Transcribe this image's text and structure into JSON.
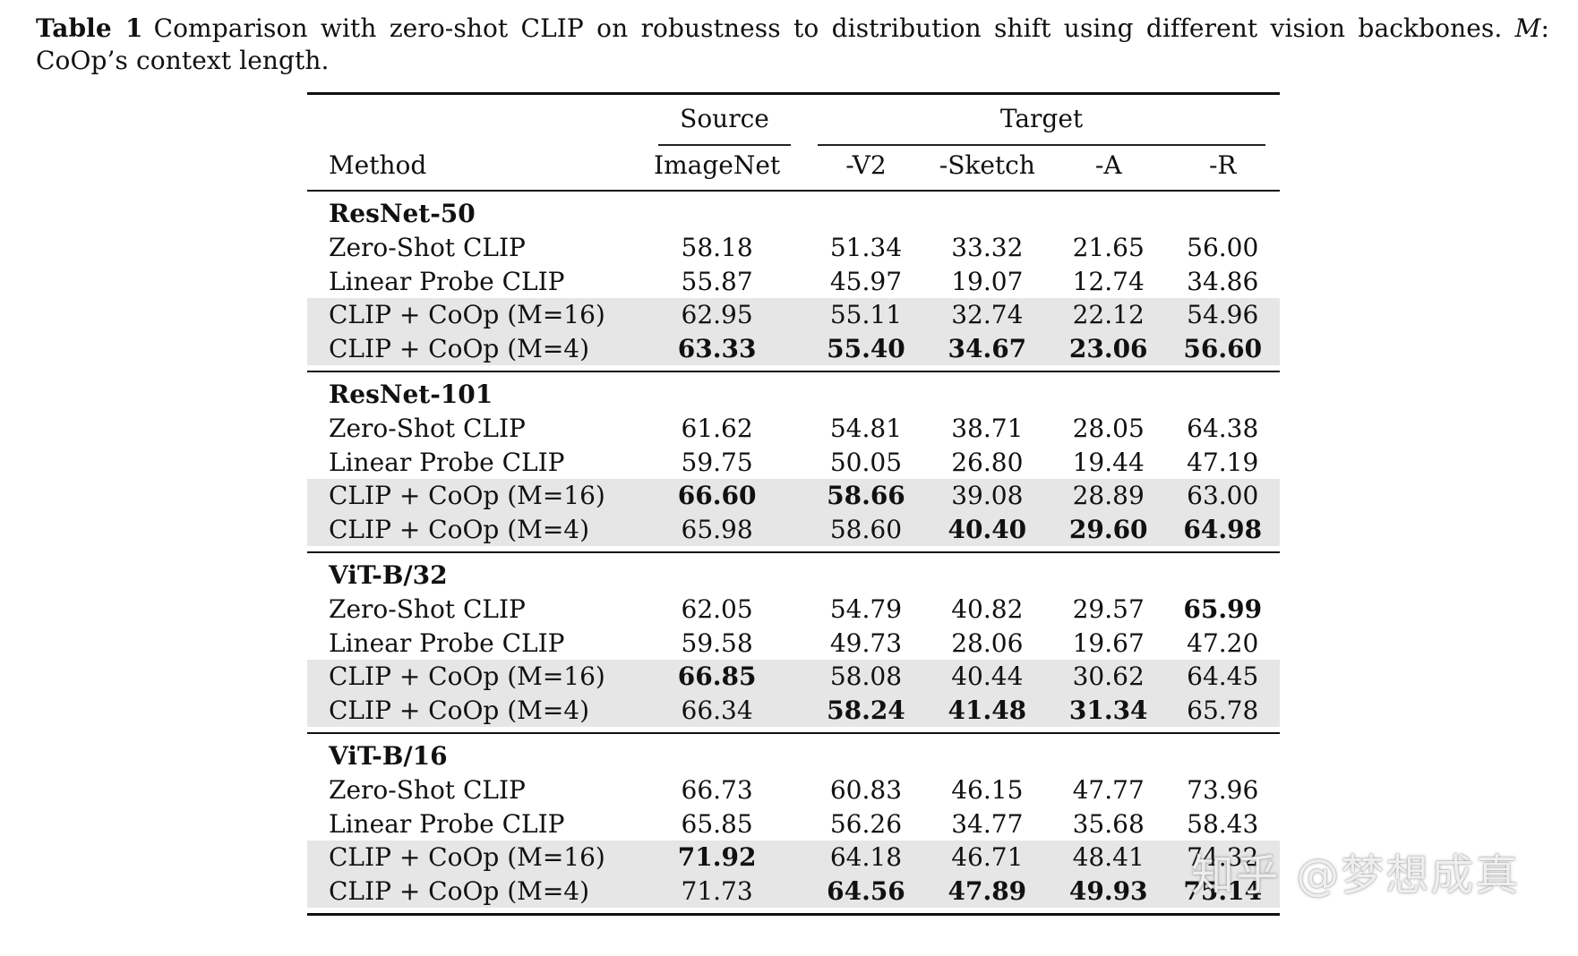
{
  "caption": {
    "label": "Table 1",
    "text_before": "Comparison with zero-shot CLIP on robustness to distribution shift using different vision backbones.",
    "var": "M",
    "text_after": ": CoOp’s context length."
  },
  "header": {
    "source_group": "Source",
    "target_group": "Target",
    "columns": [
      "Method",
      "ImageNet",
      "-V2",
      "-Sketch",
      "-A",
      "-R"
    ]
  },
  "groups": [
    {
      "name": "ResNet-50",
      "rows": [
        {
          "method": "Zero-Shot CLIP",
          "vals": [
            "58.18",
            "51.34",
            "33.32",
            "21.65",
            "56.00"
          ],
          "bold": [
            false,
            false,
            false,
            false,
            false
          ],
          "shade": false
        },
        {
          "method": "Linear Probe CLIP",
          "vals": [
            "55.87",
            "45.97",
            "19.07",
            "12.74",
            "34.86"
          ],
          "bold": [
            false,
            false,
            false,
            false,
            false
          ],
          "shade": false
        },
        {
          "method": "CLIP + CoOp (M=16)",
          "vals": [
            "62.95",
            "55.11",
            "32.74",
            "22.12",
            "54.96"
          ],
          "bold": [
            false,
            false,
            false,
            false,
            false
          ],
          "shade": true
        },
        {
          "method": "CLIP + CoOp (M=4)",
          "vals": [
            "63.33",
            "55.40",
            "34.67",
            "23.06",
            "56.60"
          ],
          "bold": [
            true,
            true,
            true,
            true,
            true
          ],
          "shade": true
        }
      ]
    },
    {
      "name": "ResNet-101",
      "rows": [
        {
          "method": "Zero-Shot CLIP",
          "vals": [
            "61.62",
            "54.81",
            "38.71",
            "28.05",
            "64.38"
          ],
          "bold": [
            false,
            false,
            false,
            false,
            false
          ],
          "shade": false
        },
        {
          "method": "Linear Probe CLIP",
          "vals": [
            "59.75",
            "50.05",
            "26.80",
            "19.44",
            "47.19"
          ],
          "bold": [
            false,
            false,
            false,
            false,
            false
          ],
          "shade": false
        },
        {
          "method": "CLIP + CoOp (M=16)",
          "vals": [
            "66.60",
            "58.66",
            "39.08",
            "28.89",
            "63.00"
          ],
          "bold": [
            true,
            true,
            false,
            false,
            false
          ],
          "shade": true
        },
        {
          "method": "CLIP + CoOp (M=4)",
          "vals": [
            "65.98",
            "58.60",
            "40.40",
            "29.60",
            "64.98"
          ],
          "bold": [
            false,
            false,
            true,
            true,
            true
          ],
          "shade": true
        }
      ]
    },
    {
      "name": "ViT-B/32",
      "rows": [
        {
          "method": "Zero-Shot CLIP",
          "vals": [
            "62.05",
            "54.79",
            "40.82",
            "29.57",
            "65.99"
          ],
          "bold": [
            false,
            false,
            false,
            false,
            true
          ],
          "shade": false
        },
        {
          "method": "Linear Probe CLIP",
          "vals": [
            "59.58",
            "49.73",
            "28.06",
            "19.67",
            "47.20"
          ],
          "bold": [
            false,
            false,
            false,
            false,
            false
          ],
          "shade": false
        },
        {
          "method": "CLIP + CoOp (M=16)",
          "vals": [
            "66.85",
            "58.08",
            "40.44",
            "30.62",
            "64.45"
          ],
          "bold": [
            true,
            false,
            false,
            false,
            false
          ],
          "shade": true
        },
        {
          "method": "CLIP + CoOp (M=4)",
          "vals": [
            "66.34",
            "58.24",
            "41.48",
            "31.34",
            "65.78"
          ],
          "bold": [
            false,
            true,
            true,
            true,
            false
          ],
          "shade": true
        }
      ]
    },
    {
      "name": "ViT-B/16",
      "rows": [
        {
          "method": "Zero-Shot CLIP",
          "vals": [
            "66.73",
            "60.83",
            "46.15",
            "47.77",
            "73.96"
          ],
          "bold": [
            false,
            false,
            false,
            false,
            false
          ],
          "shade": false
        },
        {
          "method": "Linear Probe CLIP",
          "vals": [
            "65.85",
            "56.26",
            "34.77",
            "35.68",
            "58.43"
          ],
          "bold": [
            false,
            false,
            false,
            false,
            false
          ],
          "shade": false
        },
        {
          "method": "CLIP + CoOp (M=16)",
          "vals": [
            "71.92",
            "64.18",
            "46.71",
            "48.41",
            "74.32"
          ],
          "bold": [
            true,
            false,
            false,
            false,
            false
          ],
          "shade": true
        },
        {
          "method": "CLIP + CoOp (M=4)",
          "vals": [
            "71.73",
            "64.56",
            "47.89",
            "49.93",
            "75.14"
          ],
          "bold": [
            false,
            true,
            true,
            true,
            true
          ],
          "shade": true
        }
      ]
    }
  ],
  "watermark": "知乎 @梦想成真"
}
